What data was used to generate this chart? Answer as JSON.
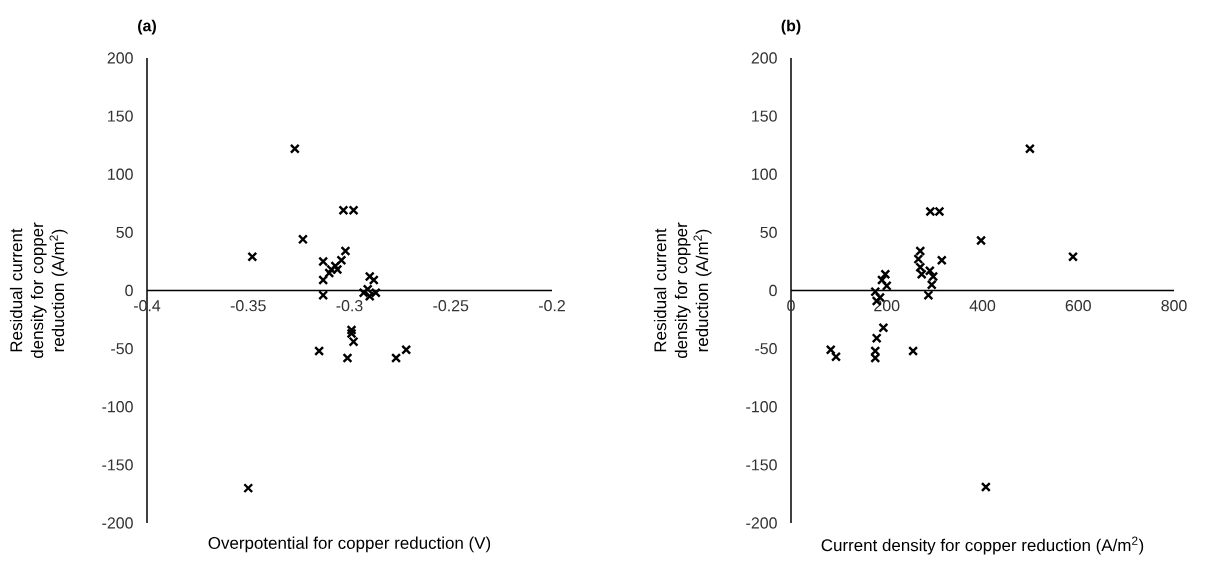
{
  "chart_data": [
    {
      "type": "scatter",
      "title": "(a)",
      "xlabel": "Overpotential for copper reduction (V)",
      "ylabel": "Residual current density for copper reduction (A/m$^{2}$)",
      "marker": "cross",
      "color": "#000000",
      "xlim": [
        -0.4,
        -0.2
      ],
      "ylim": [
        -200,
        200
      ],
      "xticks": [
        -0.4,
        -0.35,
        -0.3,
        -0.25,
        -0.2
      ],
      "yticks": [
        -200,
        -150,
        -100,
        -50,
        0,
        50,
        100,
        150,
        200
      ],
      "x": [
        -0.327,
        -0.348,
        -0.323,
        -0.303,
        -0.298,
        -0.313,
        -0.313,
        -0.313,
        -0.309,
        -0.307,
        -0.304,
        -0.302,
        -0.31,
        -0.306,
        -0.29,
        -0.288,
        -0.291,
        -0.29,
        -0.293,
        -0.287,
        -0.299,
        -0.298,
        -0.315,
        -0.301,
        -0.277,
        -0.272,
        -0.35,
        -0.299
      ],
      "values": [
        122,
        29,
        44,
        69,
        69,
        25,
        9,
        -4,
        18,
        21,
        26,
        34,
        15,
        18,
        12,
        9,
        1,
        -5,
        -2,
        -2,
        -34,
        -44,
        -52,
        -58,
        -58,
        -51,
        -170,
        -37
      ]
    },
    {
      "type": "scatter",
      "title": "(b)",
      "xlabel": "Current density for copper reduction (A/m$^{2}$)",
      "ylabel": "Residual current density for copper reduction (A/m$^{2}$)",
      "marker": "cross",
      "color": "#000000",
      "xlim": [
        0,
        800
      ],
      "ylim": [
        -200,
        200
      ],
      "xticks": [
        0,
        200,
        400,
        600,
        800
      ],
      "yticks": [
        -200,
        -150,
        -100,
        -50,
        0,
        50,
        100,
        150,
        200
      ],
      "x": [
        499,
        589,
        397,
        291,
        310,
        315,
        270,
        266,
        270,
        273,
        290,
        297,
        294,
        287,
        197,
        190,
        200,
        176,
        186,
        179,
        193,
        179,
        176,
        176,
        83,
        94,
        255,
        407
      ],
      "values": [
        122,
        29,
        43,
        68,
        68,
        26,
        34,
        27,
        20,
        14,
        17,
        12,
        5,
        -4,
        14,
        9,
        4,
        -1,
        -6,
        -9,
        -32,
        -41,
        -52,
        -58,
        -51,
        -57,
        -52,
        -169
      ]
    }
  ]
}
